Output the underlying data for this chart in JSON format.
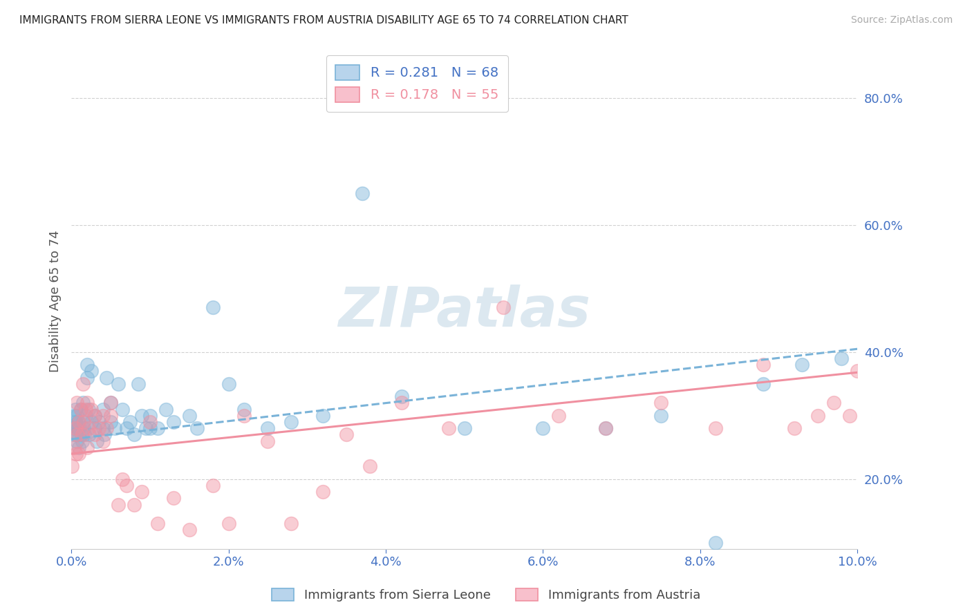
{
  "title": "IMMIGRANTS FROM SIERRA LEONE VS IMMIGRANTS FROM AUSTRIA DISABILITY AGE 65 TO 74 CORRELATION CHART",
  "source": "Source: ZipAtlas.com",
  "ylabel": "Disability Age 65 to 74",
  "xlim": [
    0.0,
    0.1
  ],
  "ylim": [
    0.09,
    0.87
  ],
  "ytick_vals": [
    0.2,
    0.4,
    0.6,
    0.8
  ],
  "ytick_labels": [
    "20.0%",
    "40.0%",
    "60.0%",
    "80.0%"
  ],
  "xtick_vals": [
    0.0,
    0.02,
    0.04,
    0.06,
    0.08,
    0.1
  ],
  "xtick_labels": [
    "0.0%",
    "2.0%",
    "4.0%",
    "6.0%",
    "8.0%",
    "10.0%"
  ],
  "series1_color": "#7ab3d8",
  "series2_color": "#f090a0",
  "series1_name": "Immigrants from Sierra Leone",
  "series2_name": "Immigrants from Austria",
  "watermark": "ZIPatlas",
  "series1_r": "R = 0.281",
  "series1_n": "N = 68",
  "series2_r": "R = 0.178",
  "series2_n": "N = 55",
  "series1_x": [
    0.0002,
    0.0003,
    0.0004,
    0.0005,
    0.0005,
    0.0006,
    0.0007,
    0.0007,
    0.0008,
    0.0009,
    0.001,
    0.001,
    0.0012,
    0.0013,
    0.0014,
    0.0015,
    0.0015,
    0.0016,
    0.0017,
    0.0018,
    0.002,
    0.002,
    0.0022,
    0.0023,
    0.0025,
    0.0025,
    0.003,
    0.003,
    0.0032,
    0.0035,
    0.004,
    0.004,
    0.0042,
    0.0045,
    0.005,
    0.005,
    0.0055,
    0.006,
    0.0065,
    0.007,
    0.0075,
    0.008,
    0.0085,
    0.009,
    0.0095,
    0.01,
    0.01,
    0.011,
    0.012,
    0.013,
    0.015,
    0.016,
    0.018,
    0.02,
    0.022,
    0.025,
    0.028,
    0.032,
    0.037,
    0.042,
    0.05,
    0.06,
    0.068,
    0.075,
    0.082,
    0.088,
    0.093,
    0.098
  ],
  "series1_y": [
    0.28,
    0.27,
    0.3,
    0.29,
    0.31,
    0.27,
    0.3,
    0.26,
    0.28,
    0.29,
    0.25,
    0.28,
    0.31,
    0.27,
    0.26,
    0.29,
    0.32,
    0.28,
    0.27,
    0.3,
    0.36,
    0.38,
    0.31,
    0.27,
    0.29,
    0.37,
    0.28,
    0.3,
    0.26,
    0.29,
    0.28,
    0.31,
    0.27,
    0.36,
    0.29,
    0.32,
    0.28,
    0.35,
    0.31,
    0.28,
    0.29,
    0.27,
    0.35,
    0.3,
    0.28,
    0.28,
    0.3,
    0.28,
    0.31,
    0.29,
    0.3,
    0.28,
    0.47,
    0.35,
    0.31,
    0.28,
    0.29,
    0.3,
    0.65,
    0.33,
    0.28,
    0.28,
    0.28,
    0.3,
    0.1,
    0.35,
    0.38,
    0.39
  ],
  "series2_x": [
    0.0001,
    0.0003,
    0.0005,
    0.0006,
    0.0007,
    0.0008,
    0.001,
    0.001,
    0.0012,
    0.0014,
    0.0015,
    0.0016,
    0.0018,
    0.002,
    0.002,
    0.0022,
    0.0025,
    0.003,
    0.003,
    0.0035,
    0.004,
    0.004,
    0.0045,
    0.005,
    0.005,
    0.006,
    0.0065,
    0.007,
    0.008,
    0.009,
    0.01,
    0.011,
    0.013,
    0.015,
    0.018,
    0.02,
    0.022,
    0.025,
    0.028,
    0.032,
    0.035,
    0.038,
    0.042,
    0.048,
    0.055,
    0.062,
    0.068,
    0.075,
    0.082,
    0.088,
    0.092,
    0.095,
    0.097,
    0.099,
    0.1
  ],
  "series2_y": [
    0.22,
    0.25,
    0.28,
    0.24,
    0.32,
    0.27,
    0.24,
    0.29,
    0.31,
    0.27,
    0.35,
    0.29,
    0.31,
    0.25,
    0.32,
    0.28,
    0.31,
    0.27,
    0.3,
    0.28,
    0.3,
    0.26,
    0.28,
    0.3,
    0.32,
    0.16,
    0.2,
    0.19,
    0.16,
    0.18,
    0.29,
    0.13,
    0.17,
    0.12,
    0.19,
    0.13,
    0.3,
    0.26,
    0.13,
    0.18,
    0.27,
    0.22,
    0.32,
    0.28,
    0.47,
    0.3,
    0.28,
    0.32,
    0.28,
    0.38,
    0.28,
    0.3,
    0.32,
    0.3,
    0.37
  ],
  "trend1_x": [
    0.0,
    0.1
  ],
  "trend1_y": [
    0.263,
    0.405
  ],
  "trend2_x": [
    0.0,
    0.1
  ],
  "trend2_y": [
    0.24,
    0.368
  ],
  "background_color": "#ffffff",
  "grid_color": "#d0d0d0",
  "axis_color": "#4472c4",
  "watermark_color": "#dce8f0",
  "legend_patch1_face": "#b8d4ec",
  "legend_patch2_face": "#f8c0cc",
  "legend_patch1_edge": "#7ab3d8",
  "legend_patch2_edge": "#f090a0"
}
